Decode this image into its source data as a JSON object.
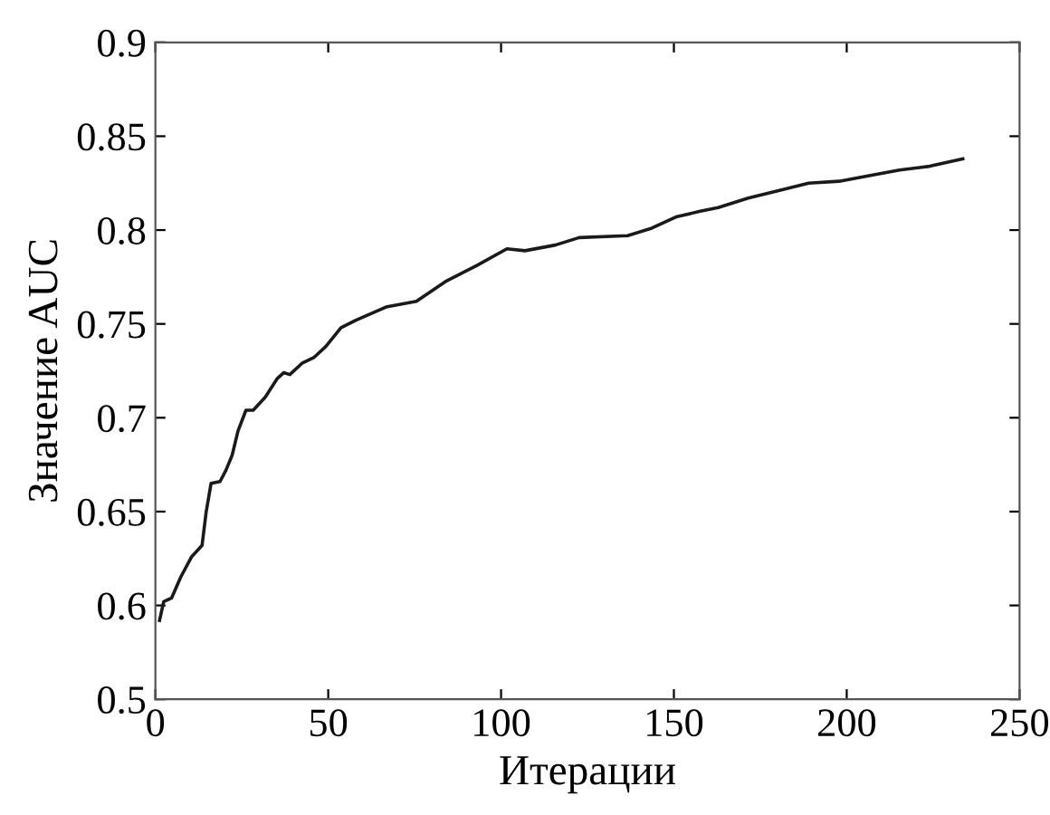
{
  "chart_data": {
    "type": "line",
    "xlabel": "Итерации",
    "ylabel": "Значение AUC",
    "xlim": [
      0,
      250
    ],
    "xticks": [
      0,
      50,
      100,
      150,
      200,
      250
    ],
    "ylim": [
      0.55,
      0.9
    ],
    "yticks": [
      {
        "value": 0.55,
        "label": "0.5"
      },
      0.6,
      0.65,
      0.7,
      0.75,
      0.8,
      0.85,
      0.9
    ],
    "grid": false,
    "marker": "none",
    "line_style": "solid",
    "series": [
      {
        "color": "#1a1a1a",
        "x": [
          1.2,
          2.4,
          4.7,
          7.3,
          10.5,
          13.5,
          14.7,
          16.1,
          18.7,
          20.4,
          22.2,
          23.9,
          26.2,
          28.3,
          31.8,
          35.3,
          37.1,
          38.9,
          42.4,
          45.8,
          49.3,
          53.7,
          58.0,
          66.7,
          75.5,
          84.3,
          92.9,
          101.7,
          106.9,
          115.7,
          122.6,
          136.6,
          143.6,
          150.6,
          157.6,
          162.8,
          171.5,
          180.3,
          189.0,
          197.8,
          206.5,
          215.3,
          224.0,
          233.6
        ],
        "values": [
          0.592,
          0.602,
          0.604,
          0.615,
          0.626,
          0.632,
          0.65,
          0.665,
          0.666,
          0.672,
          0.68,
          0.693,
          0.704,
          0.704,
          0.711,
          0.721,
          0.724,
          0.723,
          0.729,
          0.732,
          0.738,
          0.748,
          0.752,
          0.759,
          0.762,
          0.773,
          0.781,
          0.79,
          0.789,
          0.792,
          0.796,
          0.797,
          0.801,
          0.807,
          0.81,
          0.812,
          0.817,
          0.821,
          0.825,
          0.826,
          0.829,
          0.832,
          0.834,
          0.838
        ]
      }
    ]
  }
}
